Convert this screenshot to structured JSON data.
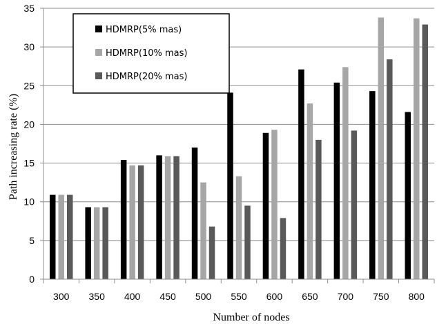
{
  "chart_data": {
    "type": "bar",
    "title": "",
    "xlabel": "Number of nodes",
    "ylabel": "Path increasing rate (%)",
    "categories": [
      "300",
      "350",
      "400",
      "450",
      "500",
      "550",
      "600",
      "650",
      "700",
      "750",
      "800"
    ],
    "ylim": [
      0,
      35
    ],
    "yticks": [
      0,
      5,
      10,
      15,
      20,
      25,
      30,
      35
    ],
    "grid": "horizontal",
    "legend_position": "top-left",
    "series": [
      {
        "name": "HDMRP(5% mas)",
        "color": "#000000",
        "values": [
          10.9,
          9.3,
          15.4,
          16.0,
          17.0,
          24.1,
          18.9,
          27.1,
          25.4,
          24.3,
          21.6
        ]
      },
      {
        "name": "HDMRP(10% mas)",
        "color": "#a6a6a6",
        "values": [
          10.9,
          9.3,
          14.7,
          15.9,
          12.5,
          13.3,
          19.3,
          22.7,
          27.4,
          33.8,
          33.7
        ]
      },
      {
        "name": "HDMRP(20% mas)",
        "color": "#595959",
        "values": [
          10.9,
          9.3,
          14.7,
          15.9,
          6.8,
          9.5,
          7.9,
          18.0,
          19.2,
          28.4,
          32.9
        ]
      }
    ]
  }
}
